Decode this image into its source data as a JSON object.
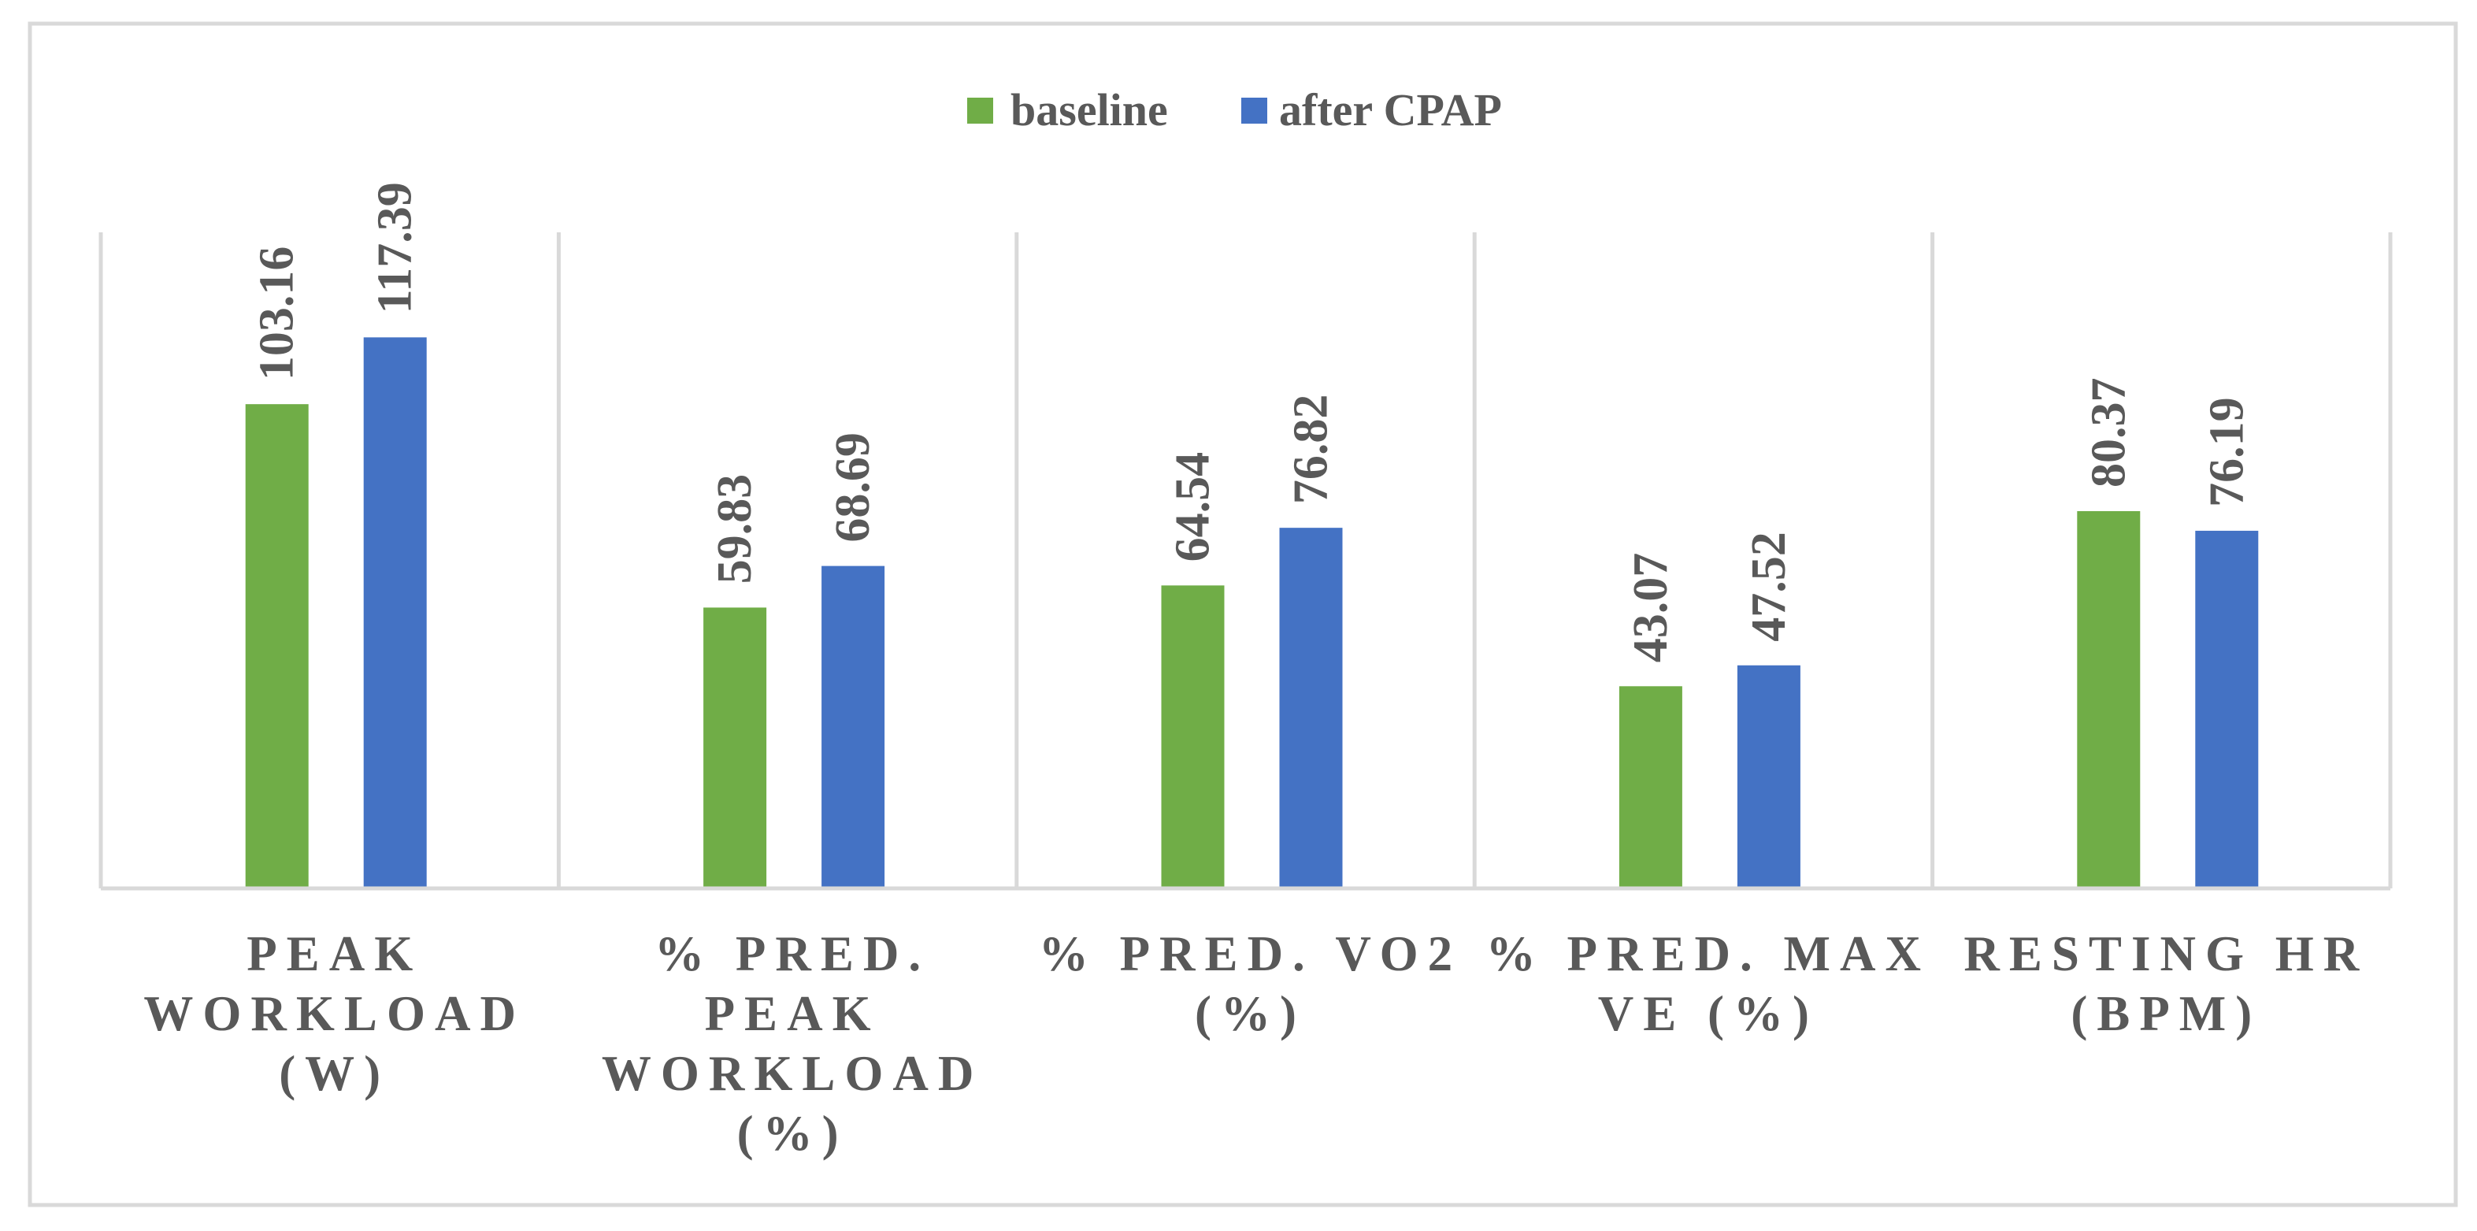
{
  "chart_data": {
    "type": "bar",
    "title": "",
    "xlabel": "",
    "ylabel": "",
    "ylim": [
      0,
      130
    ],
    "grid": false,
    "legend_position": "top-center",
    "categories": [
      [
        "PEAK",
        "WORKLOAD",
        "(W)"
      ],
      [
        "% PRED.",
        "PEAK",
        "WORKLOAD",
        "(%)"
      ],
      [
        "% PRED. VO2",
        "(%)"
      ],
      [
        "% PRED. MAX",
        "VE (%)"
      ],
      [
        "RESTING HR",
        "(BPM)"
      ]
    ],
    "series": [
      {
        "name": "baseline",
        "color": "#70AD47",
        "values": [
          103.16,
          59.83,
          64.54,
          43.07,
          80.37
        ],
        "labels": [
          "103.16",
          "59.83",
          "64.54",
          "43.07",
          "80.37"
        ]
      },
      {
        "name": "after CPAP",
        "color": "#4472C4",
        "values": [
          117.39,
          68.69,
          76.82,
          47.52,
          76.19
        ],
        "labels": [
          "117.39",
          "68.69",
          "76.82",
          "47.52",
          "76.19"
        ]
      }
    ]
  },
  "colors": {
    "frame_border": "#D9D9D9",
    "axis": "#D9D9D9",
    "text": "#595959"
  }
}
